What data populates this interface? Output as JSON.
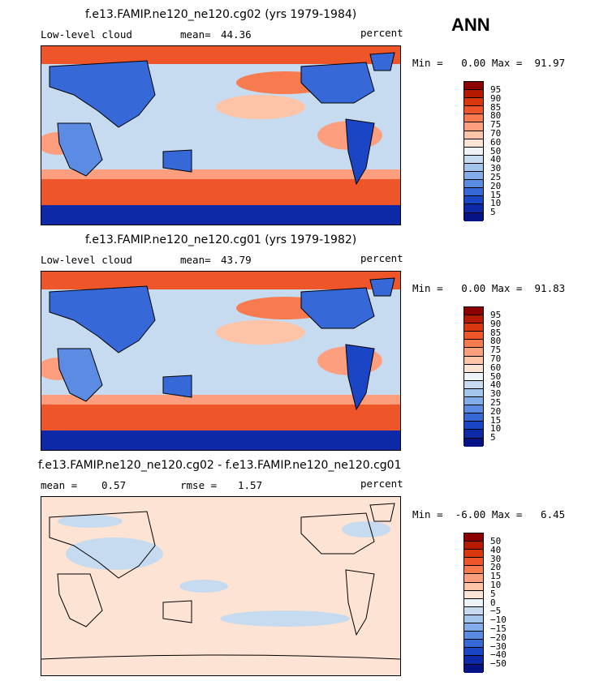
{
  "season": "ANN",
  "colorbars": {
    "top_colors": [
      "#8c0000",
      "#b51a00",
      "#d9380f",
      "#ee5528",
      "#f87b50",
      "#fd9f7e",
      "#fec4a8",
      "#fde3d3",
      "#eef3f8",
      "#c6dbef",
      "#a5c6ec",
      "#82acea",
      "#5b8be3",
      "#3768d8",
      "#1a45c4",
      "#0e29a8",
      "#061386"
    ],
    "diff_colors": [
      "#8c0000",
      "#b51a00",
      "#d9380f",
      "#ee5528",
      "#f87b50",
      "#fd9f7e",
      "#fec4a8",
      "#fde3d3",
      "#eef3f8",
      "#c6dbef",
      "#a5c6ec",
      "#82acea",
      "#5b8be3",
      "#3768d8",
      "#1a45c4",
      "#0e29a8",
      "#061386"
    ],
    "top_labels": [
      "95",
      "90",
      "85",
      "80",
      "75",
      "70",
      "60",
      "50",
      "40",
      "30",
      "25",
      "20",
      "15",
      "10",
      "5"
    ],
    "diff_labels": [
      "50",
      "40",
      "30",
      "20",
      "15",
      "10",
      "5",
      "0",
      "−5",
      "−10",
      "−15",
      "−20",
      "−30",
      "−40",
      "−50"
    ]
  },
  "panels": [
    {
      "title": "f.e13.FAMIP.ne120_ne120.cg02 (yrs 1979-1984)",
      "left_label": "Low-level cloud",
      "mean_label": "mean=",
      "mean_value": "44.36",
      "units": "percent",
      "minmax": "Min =   0.00 Max =  91.97"
    },
    {
      "title": "f.e13.FAMIP.ne120_ne120.cg01 (yrs 1979-1982)",
      "left_label": "Low-level cloud",
      "mean_label": "mean=",
      "mean_value": "43.79",
      "units": "percent",
      "minmax": "Min =   0.00 Max =  91.83"
    },
    {
      "title": "f.e13.FAMIP.ne120_ne120.cg02 - f.e13.FAMIP.ne120_ne120.cg01",
      "left_label": "mean =",
      "mean_value": "0.57",
      "rmse_label": "rmse =",
      "rmse_value": "1.57",
      "units": "percent",
      "minmax": "Min =  -6.00 Max =   6.45"
    }
  ]
}
